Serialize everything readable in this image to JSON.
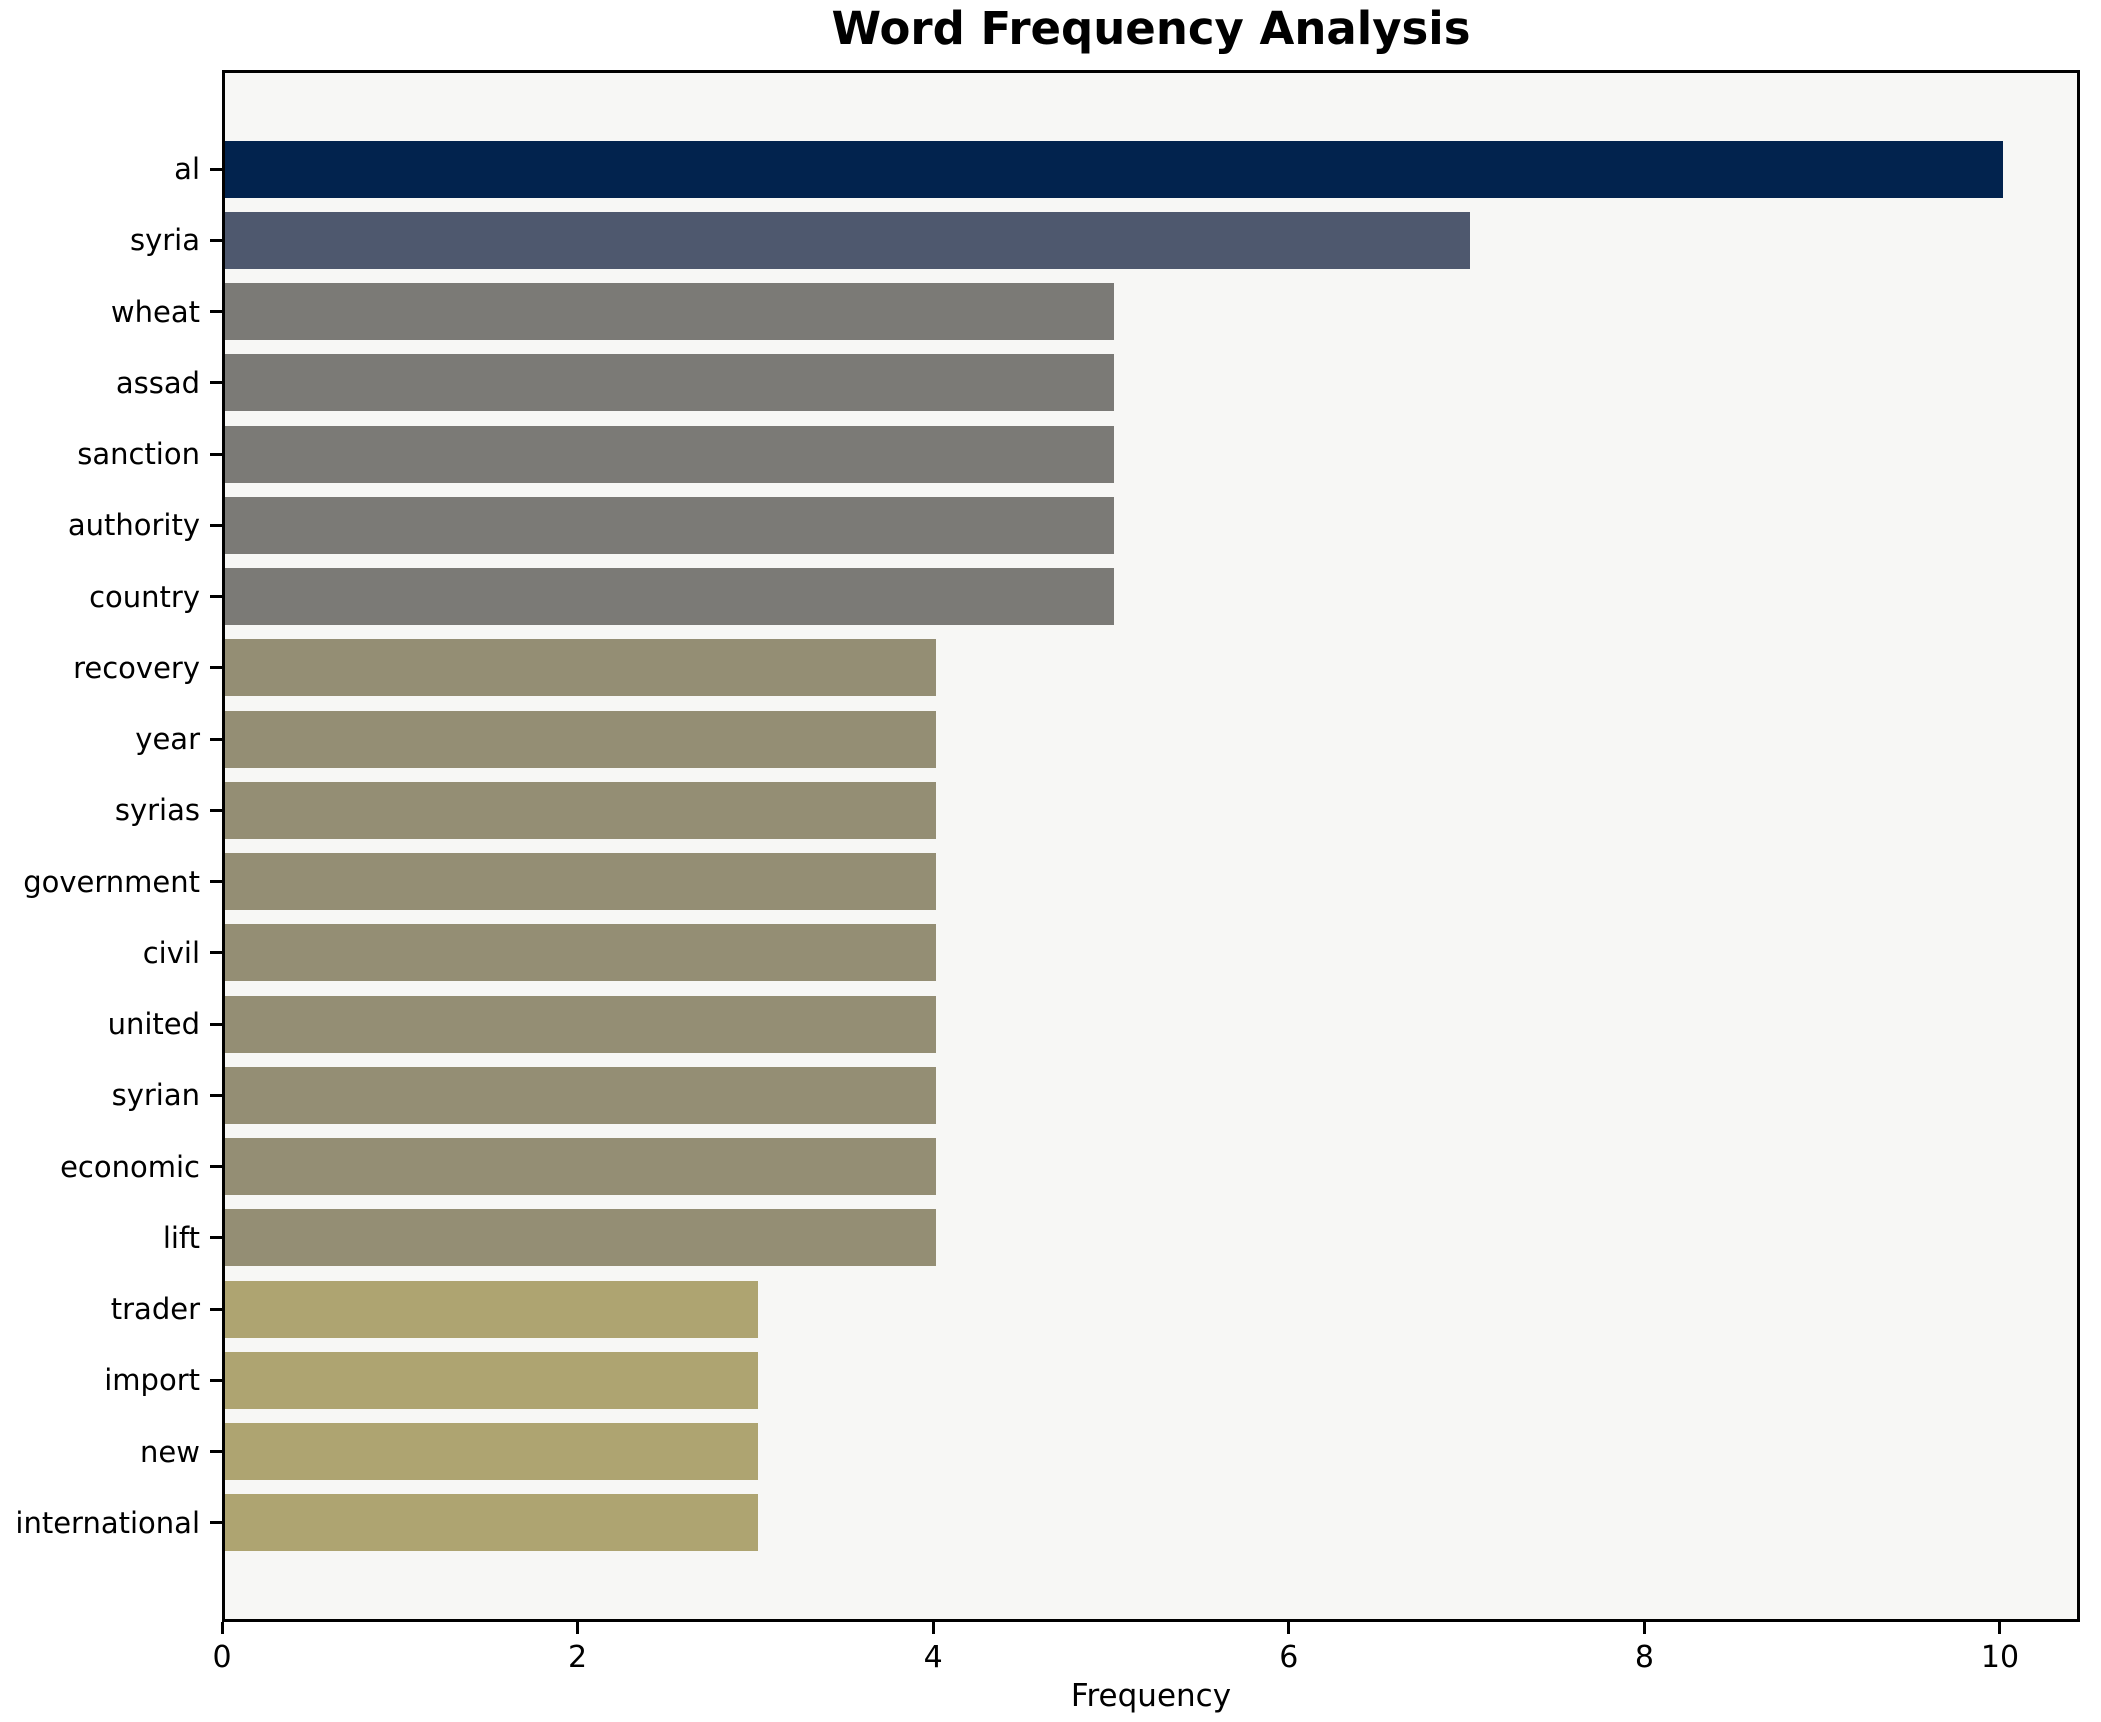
{
  "chart_data": {
    "type": "bar",
    "orientation": "horizontal",
    "title": "Word Frequency Analysis",
    "xlabel": "Frequency",
    "ylabel": "",
    "categories": [
      "al",
      "syria",
      "wheat",
      "assad",
      "sanction",
      "authority",
      "country",
      "recovery",
      "year",
      "syrias",
      "government",
      "civil",
      "united",
      "syrian",
      "economic",
      "lift",
      "trader",
      "import",
      "new",
      "international"
    ],
    "values": [
      10,
      7,
      5,
      5,
      5,
      5,
      5,
      4,
      4,
      4,
      4,
      4,
      4,
      4,
      4,
      4,
      3,
      3,
      3,
      3
    ],
    "bar_colors": [
      "#02234e",
      "#4e586e",
      "#7b7a76",
      "#7b7a76",
      "#7b7a76",
      "#7b7a76",
      "#7b7a76",
      "#948e74",
      "#948e74",
      "#948e74",
      "#948e74",
      "#948e74",
      "#948e74",
      "#948e74",
      "#948e74",
      "#948e74",
      "#aea471",
      "#aea471",
      "#aea471",
      "#aea471"
    ],
    "xticks": [
      0,
      2,
      4,
      6,
      8,
      10
    ],
    "xlim": [
      0,
      10.45
    ],
    "grid": false,
    "legend": null,
    "plot_bg": "#f7f7f5",
    "fig_bg": "#ffffff",
    "spine_color": "#000000",
    "text_color": "#000000"
  }
}
